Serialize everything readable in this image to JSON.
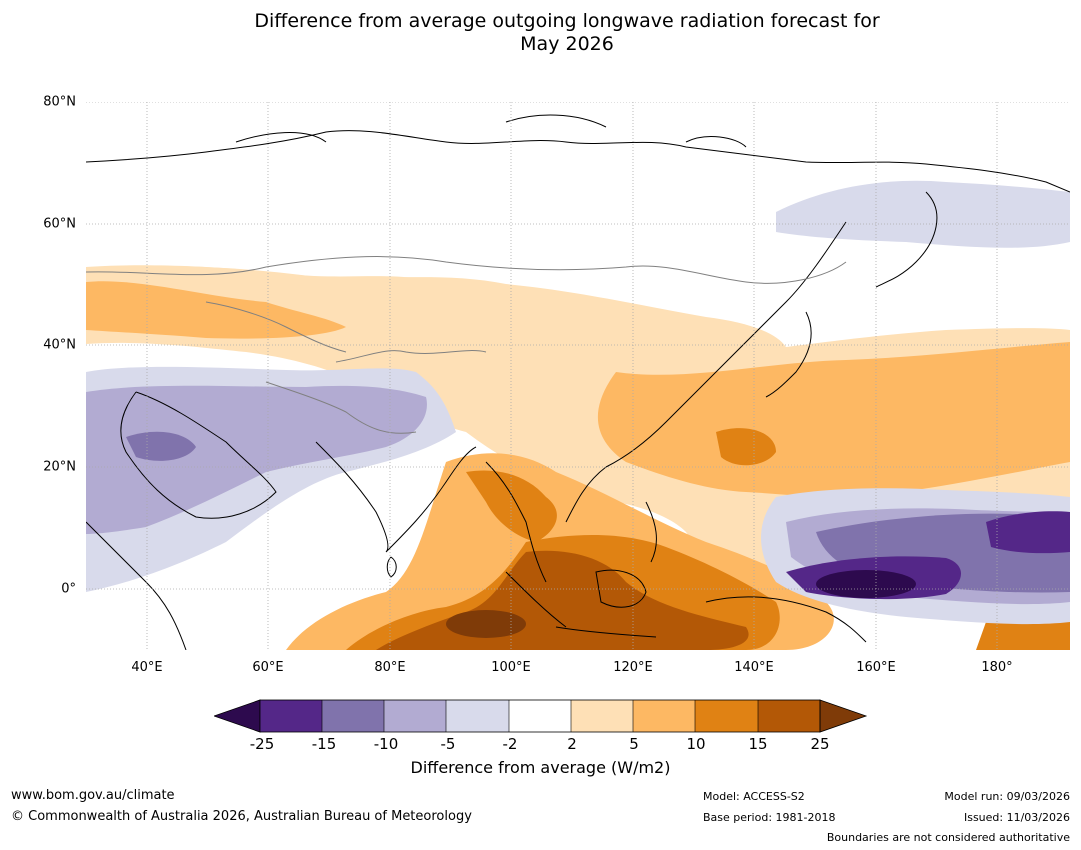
{
  "title": {
    "line1": "Difference from average outgoing longwave radiation forecast for",
    "line2": "May 2026"
  },
  "map": {
    "lat_labels": [
      "80°N",
      "60°N",
      "40°N",
      "20°N",
      "0°"
    ],
    "lon_labels": [
      "40°E",
      "60°E",
      "80°E",
      "100°E",
      "120°E",
      "140°E",
      "160°E",
      "180°"
    ],
    "extent": {
      "lon_min": 30,
      "lon_max": 192,
      "lat_min": -10,
      "lat_max": 80
    }
  },
  "colorbar": {
    "ticks": [
      "-25",
      "-15",
      "-10",
      "-5",
      "-2",
      "2",
      "5",
      "10",
      "15",
      "25"
    ],
    "colors": {
      "below_min": "#2d0a4e",
      "c1": "#542788",
      "c2": "#8073ac",
      "c3": "#b2abd2",
      "c4": "#d8daeb",
      "c5": "#ffffff",
      "c6": "#fee0b6",
      "c7": "#fdb863",
      "c8": "#e08214",
      "c9": "#b35806",
      "above_max": "#7f3b08"
    },
    "label": "Difference from average (W/m2)"
  },
  "footer": {
    "website": "www.bom.gov.au/climate",
    "copyright": "© Commonwealth of Australia 2026, Australian Bureau of Meteorology",
    "model": "Model: ACCESS-S2",
    "base_period": "Base period: 1981-2018",
    "model_run": "Model run: 09/03/2026",
    "issued": "Issued: 11/03/2026",
    "disclaimer": "Boundaries are not considered authoritative"
  }
}
